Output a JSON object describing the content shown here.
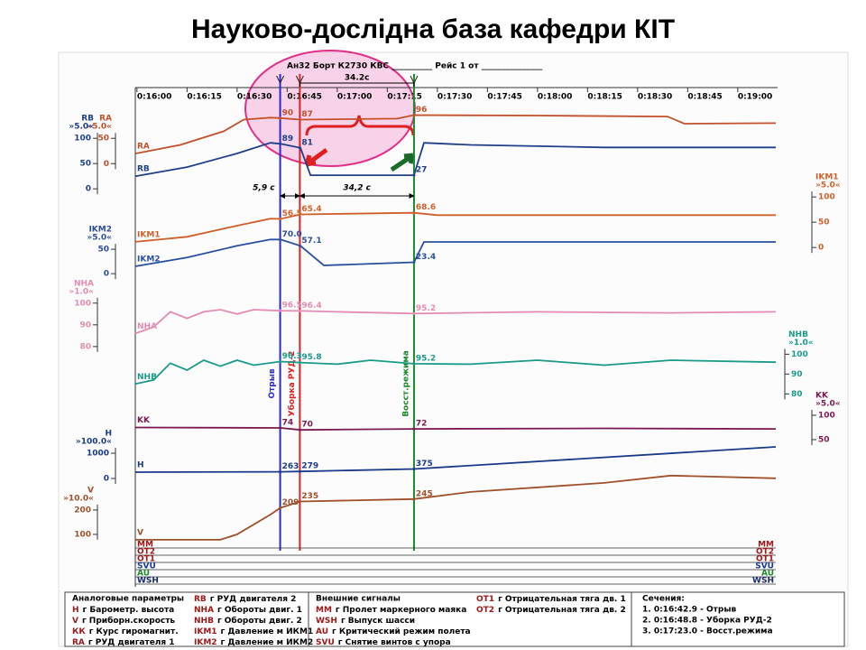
{
  "title": "Науково-дослідна база кафедри КІТ",
  "chart_data": {
    "type": "line",
    "header": "Ан32 Борт К2730 КВС __________ Рейс 1 от _______________",
    "xlim": [
      959.5,
      1151.4
    ],
    "xticks": [
      {
        "value": 960,
        "label": "0:16:00"
      },
      {
        "value": 975,
        "label": "0:16:15"
      },
      {
        "value": 990,
        "label": "0:16:30"
      },
      {
        "value": 1005,
        "label": "0:16:45"
      },
      {
        "value": 1020,
        "label": "0:17:00"
      },
      {
        "value": 1035,
        "label": "0:17:15"
      },
      {
        "value": 1050,
        "label": "0:17:30"
      },
      {
        "value": 1065,
        "label": "0:17:45"
      },
      {
        "value": 1080,
        "label": "0:18:00"
      },
      {
        "value": 1095,
        "label": "0:18:15"
      },
      {
        "value": 1110,
        "label": "0:18:30"
      },
      {
        "value": 1125,
        "label": "0:18:45"
      },
      {
        "value": 1140,
        "label": "0:19:00"
      }
    ],
    "series": [
      {
        "name": "RA",
        "color": "#c4502a",
        "side": "left",
        "scale": "»5.0«",
        "ylim": [
          -765,
          145
        ],
        "yticks": [
          0,
          50
        ],
        "x": [
          959.5,
          973,
          986,
          992,
          1000,
          1003,
          1009,
          1038,
          1043,
          1080,
          1119,
          1124,
          1151.4
        ],
        "values": [
          20,
          37,
          64,
          87,
          91,
          90,
          87,
          89,
          96,
          95,
          93,
          79,
          80
        ],
        "readings": [
          90,
          87,
          96
        ]
      },
      {
        "name": "RB",
        "color": "#1f3f8a",
        "side": "left",
        "scale": "»5.0«",
        "ylim": [
          -716,
          195
        ],
        "yticks": [
          0,
          50,
          100
        ],
        "x": [
          959.5,
          975,
          990,
          1000,
          1003,
          1009,
          1012,
          1043,
          1046,
          1060,
          1100,
          1151.4
        ],
        "values": [
          25,
          43,
          70,
          91,
          89,
          81,
          27,
          27,
          91,
          87,
          82,
          82
        ],
        "readings": [
          89,
          81,
          27
        ]
      },
      {
        "name": "IKM1",
        "color": "#d0602a",
        "side": "right",
        "scale": "»5.0«",
        "ylim": [
          -600,
          311
        ],
        "yticks": [
          0,
          50,
          100
        ],
        "x": [
          959.5,
          975,
          990,
          1000,
          1003,
          1009,
          1043,
          1050,
          1151.4
        ],
        "values": [
          11,
          21,
          43,
          57,
          56.5,
          65.4,
          68.6,
          64,
          64
        ],
        "readings": [
          56.5,
          65.4,
          68.6
        ]
      },
      {
        "name": "IKM2",
        "color": "#2a4fa0",
        "side": "left",
        "scale": "»5.0«",
        "ylim": [
          -568,
          376
        ],
        "yticks": [
          0,
          50
        ],
        "x": [
          959.5,
          975,
          990,
          1000,
          1003,
          1009,
          1016,
          1043,
          1046,
          1151.4
        ],
        "values": [
          15,
          33,
          57,
          70,
          70,
          57.1,
          17,
          23.4,
          65,
          65
        ],
        "readings": [
          70,
          57.1,
          23.4
        ],
        "reading_labels": [
          "70.0",
          "57.1",
          "23.4"
        ]
      },
      {
        "name": "NHA",
        "color": "#e48cb4",
        "side": "left",
        "scale": "»1.0«",
        "ylim": [
          -14,
          198
        ],
        "yticks": [
          80,
          90,
          100
        ],
        "x": [
          959.5,
          965,
          970,
          975,
          980,
          985,
          990,
          995,
          1003,
          1009,
          1020,
          1043,
          1080,
          1120,
          1151.4
        ],
        "values": [
          86,
          89,
          96,
          93,
          96,
          97,
          95,
          97,
          96.5,
          96.4,
          96,
          95.2,
          96,
          95.5,
          96
        ],
        "readings": [
          96.5,
          96.4,
          95.2
        ]
      },
      {
        "name": "NHB",
        "color": "#1a9a8a",
        "side": "right",
        "scale": "»1.0«",
        "ylim": [
          1,
          233
        ],
        "yticks": [
          80,
          90,
          100
        ],
        "x": [
          959.5,
          965,
          970,
          975,
          980,
          985,
          990,
          995,
          1003,
          1009,
          1020,
          1030,
          1043,
          1060,
          1080,
          1100,
          1120,
          1151.4
        ],
        "values": [
          85,
          87,
          95.5,
          92,
          97,
          94,
          97,
          94.5,
          96.3,
          95.8,
          95,
          97,
          95.2,
          95,
          97,
          94.5,
          97,
          96
        ],
        "readings": [
          96.3,
          95.8,
          95.2
        ]
      },
      {
        "name": "KK",
        "color": "#7a1a50",
        "side": "right",
        "scale": "»5.0«",
        "ylim": [
          -178,
          767
        ],
        "yticks": [
          50,
          100
        ],
        "x": [
          959.5,
          1003,
          1009,
          1043,
          1100,
          1151.4
        ],
        "values": [
          75,
          74,
          70,
          72,
          73,
          72
        ],
        "readings": [
          74,
          70,
          72
        ]
      },
      {
        "name": "H",
        "color": "#1a3a8a",
        "side": "left",
        "scale": "»100.0«",
        "ylim": [
          -2857,
          15357
        ],
        "yticks": [
          0,
          1000
        ],
        "x": [
          959.5,
          1003,
          1009,
          1043,
          1151.4
        ],
        "values": [
          250,
          263,
          279,
          375,
          1250
        ],
        "readings": [
          263,
          279,
          375
        ]
      },
      {
        "name": "V",
        "color": "#a0502a",
        "side": "left",
        "scale": "»10.0«",
        "ylim": [
          33,
          1922
        ],
        "yticks": [
          100,
          200
        ],
        "x": [
          959.5,
          985,
          990,
          1000,
          1003,
          1009,
          1043,
          1060,
          1100,
          1120,
          1151.4
        ],
        "values": [
          78,
          78,
          100,
          181,
          209,
          235,
          245,
          274,
          311,
          341,
          330
        ],
        "readings": [
          209,
          235,
          245
        ]
      }
    ],
    "events": [
      {
        "label": "Отрыв",
        "time": 1002.9,
        "color": "#2a2ad0"
      },
      {
        "label": "Уборка РУД-2",
        "time": 1008.8,
        "color": "#e02020"
      },
      {
        "label": "Восст.режима",
        "time": 1043.0,
        "color": "#1a8a2a"
      }
    ],
    "intervals": [
      {
        "value": 5.9,
        "label": "5,9 с"
      },
      {
        "value": 34.2,
        "label": "34,2 с"
      }
    ],
    "header_interval": {
      "value": 34.2,
      "label": "34.2с"
    },
    "signals": [
      {
        "name": "MM",
        "color": "#a01818"
      },
      {
        "name": "OT2",
        "color": "#a01818"
      },
      {
        "name": "OT1",
        "color": "#a01818"
      },
      {
        "name": "SVU",
        "color": "#1a3aa0"
      },
      {
        "name": "AU",
        "color": "#1a8a2a"
      },
      {
        "name": "WSH",
        "color": "#1a2a6a"
      }
    ]
  },
  "legend": {
    "analog": {
      "title": "Аналоговые параметры",
      "items": [
        {
          "code": "Н",
          "desc": "г Барометр. высота"
        },
        {
          "code": "V",
          "desc": "г Приборн.скорость"
        },
        {
          "code": "КК",
          "desc": "г Курс гиромагнит."
        },
        {
          "code": "RA",
          "desc": "г РУД двигателя 1"
        },
        {
          "code": "RB",
          "desc": "г РУД двигателя 2"
        },
        {
          "code": "NHA",
          "desc": "г Обороты двиг. 1"
        },
        {
          "code": "NHB",
          "desc": "г Обороты двиг. 2"
        },
        {
          "code": "IKM1",
          "desc": "г Давление м ИКМ1"
        },
        {
          "code": "IKM2",
          "desc": "г Давление м ИКМ2"
        }
      ]
    },
    "external": {
      "title": "Внешние сигналы",
      "items": [
        {
          "code": "MM",
          "desc": "г Пролет маркерного маяка"
        },
        {
          "code": "WSH",
          "desc": "г Выпуск шасси"
        },
        {
          "code": "AU",
          "desc": "г Критический режим полета"
        },
        {
          "code": "SVU",
          "desc": "г Снятие винтов с упора"
        },
        {
          "code": "OT1",
          "desc": "г Отрицательная тяга дв. 1"
        },
        {
          "code": "OT2",
          "desc": "г Отрицательная тяга дв. 2"
        }
      ]
    },
    "sections": {
      "title": "Сечения:",
      "items": [
        "1.  0:16:42.9 - Отрыв",
        "2.  0:16:48.8 - Уборка РУД-2",
        "3.  0:17:23.0 - Восст.режима"
      ]
    }
  }
}
